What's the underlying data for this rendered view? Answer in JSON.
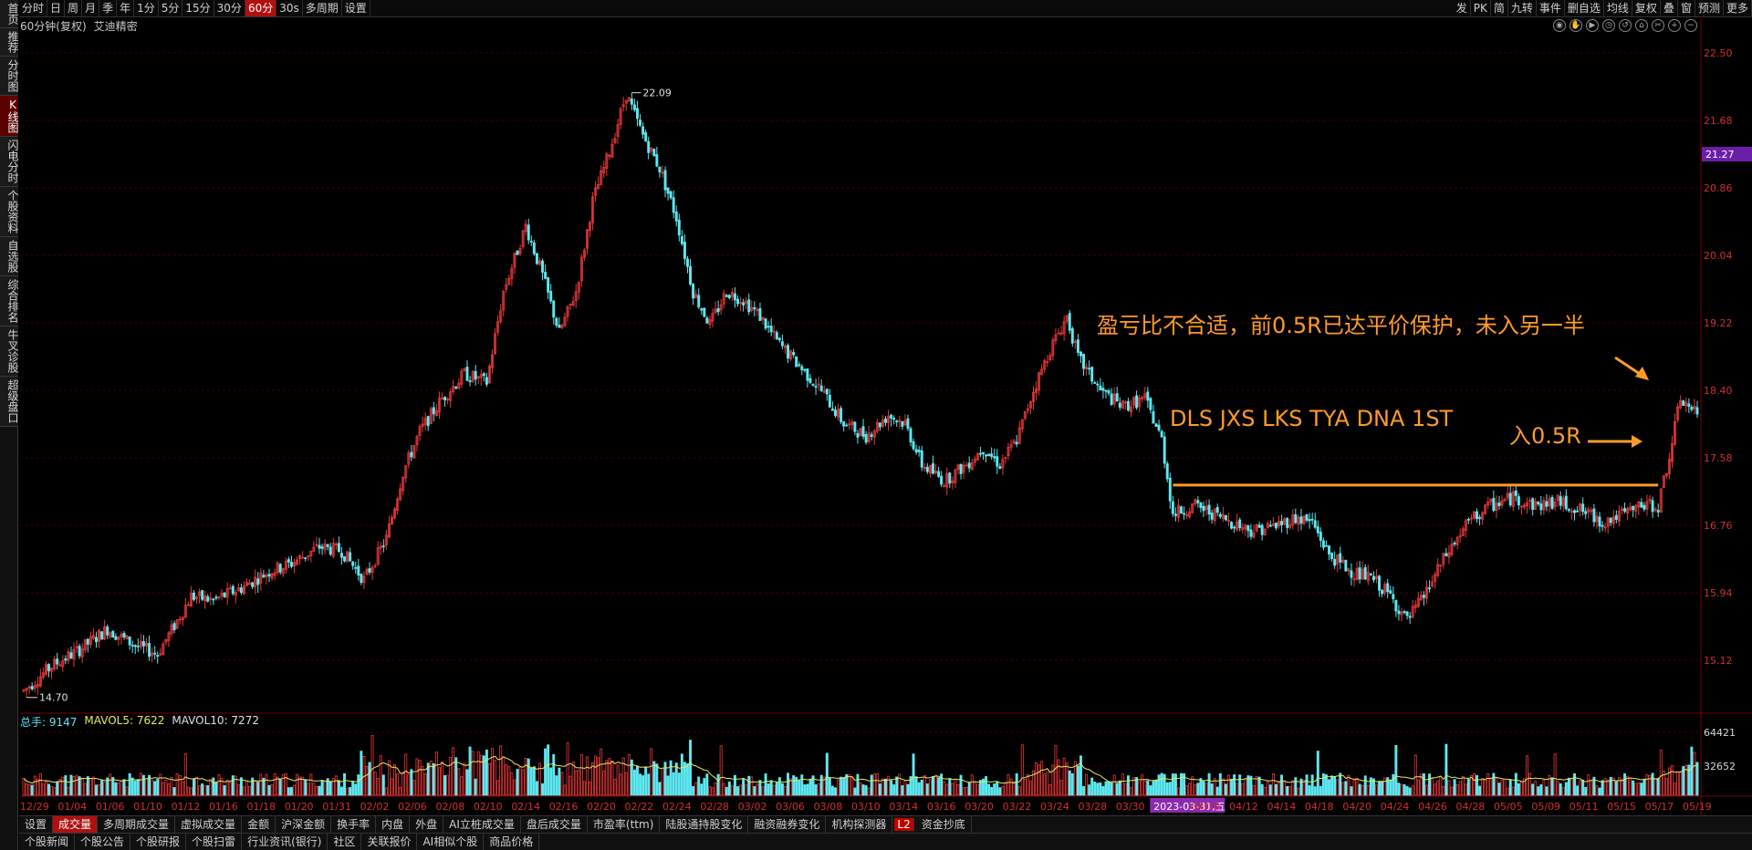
{
  "left_tabs": [
    "首页",
    "推荐",
    "分时图",
    "K线图",
    "闪电分时",
    "个股资料",
    "自选股",
    "综合排名",
    "牛叉诊股",
    "超级盘口"
  ],
  "left_active": 3,
  "toolbar": {
    "periods": [
      "分时",
      "日",
      "周",
      "月",
      "季",
      "年",
      "1分",
      "5分",
      "15分",
      "30分",
      "60分",
      "30s",
      "多周期",
      "设置"
    ],
    "active": 10,
    "right": [
      "发",
      "PK",
      "简",
      "九转",
      "事件",
      "删自选",
      "均线",
      "复权",
      "叠",
      "窗",
      "预测",
      "更多"
    ]
  },
  "header": {
    "period_label": "60分钟(复权)",
    "stock_name": "艾迪精密"
  },
  "price_axis": {
    "ticks": [
      "22.50",
      "21.68",
      "20.86",
      "20.04",
      "19.22",
      "18.40",
      "17.58",
      "16.76",
      "15.94",
      "15.12"
    ],
    "current": "21.27",
    "colors": {
      "current_bg": "#6b1fa8",
      "tick": "#d03030"
    }
  },
  "chart_data": {
    "type": "candlestick",
    "ylim": [
      14.5,
      22.7
    ],
    "max_label": "22.09",
    "min_label": "14.70",
    "date_labels": [
      "12/29",
      "01/04",
      "01/06",
      "01/10",
      "01/12",
      "01/16",
      "01/18",
      "01/20",
      "01/31",
      "02/02",
      "02/06",
      "02/08",
      "02/10",
      "02/14",
      "02/16",
      "02/20",
      "02/22",
      "02/24",
      "02/28",
      "03/02",
      "03/06",
      "03/08",
      "03/10",
      "03/14",
      "03/16",
      "03/20",
      "03/22",
      "03/24",
      "03/28",
      "03/30",
      "2023-03-31,五",
      "04/10",
      "04/12",
      "04/14",
      "04/18",
      "04/20",
      "04/24",
      "04/26",
      "04/28",
      "05/05",
      "05/09",
      "05/11",
      "05/15",
      "05/17",
      "05/19"
    ],
    "highlight_date": "2023-03-31,五",
    "trend_points": [
      [
        0,
        14.75
      ],
      [
        10,
        15.05
      ],
      [
        20,
        15.25
      ],
      [
        30,
        15.5
      ],
      [
        40,
        15.3
      ],
      [
        48,
        15.2
      ],
      [
        55,
        15.6
      ],
      [
        60,
        15.9
      ],
      [
        68,
        15.85
      ],
      [
        78,
        16.0
      ],
      [
        88,
        16.2
      ],
      [
        96,
        16.3
      ],
      [
        106,
        16.5
      ],
      [
        114,
        16.45
      ],
      [
        122,
        16.1
      ],
      [
        130,
        16.6
      ],
      [
        136,
        17.4
      ],
      [
        142,
        17.9
      ],
      [
        150,
        18.3
      ],
      [
        158,
        18.6
      ],
      [
        166,
        18.5
      ],
      [
        172,
        19.6
      ],
      [
        180,
        20.4
      ],
      [
        186,
        19.8
      ],
      [
        192,
        19.1
      ],
      [
        198,
        19.6
      ],
      [
        204,
        20.7
      ],
      [
        210,
        21.3
      ],
      [
        216,
        22.0
      ],
      [
        222,
        21.5
      ],
      [
        228,
        21.1
      ],
      [
        234,
        20.5
      ],
      [
        240,
        19.6
      ],
      [
        246,
        19.2
      ],
      [
        252,
        19.6
      ],
      [
        258,
        19.5
      ],
      [
        264,
        19.3
      ],
      [
        270,
        19.0
      ],
      [
        278,
        18.7
      ],
      [
        286,
        18.4
      ],
      [
        294,
        18.0
      ],
      [
        302,
        17.85
      ],
      [
        310,
        18.1
      ],
      [
        316,
        18.0
      ],
      [
        322,
        17.5
      ],
      [
        330,
        17.3
      ],
      [
        338,
        17.5
      ],
      [
        344,
        17.7
      ],
      [
        350,
        17.5
      ],
      [
        356,
        17.8
      ],
      [
        362,
        18.4
      ],
      [
        368,
        18.9
      ],
      [
        374,
        19.3
      ],
      [
        378,
        18.8
      ],
      [
        386,
        18.4
      ],
      [
        394,
        18.2
      ],
      [
        402,
        18.3
      ],
      [
        408,
        17.8
      ],
      [
        412,
        16.9
      ],
      [
        420,
        17.0
      ],
      [
        430,
        16.85
      ],
      [
        440,
        16.7
      ],
      [
        448,
        16.75
      ],
      [
        456,
        16.85
      ],
      [
        462,
        16.8
      ],
      [
        468,
        16.4
      ],
      [
        476,
        16.2
      ],
      [
        484,
        16.1
      ],
      [
        490,
        15.9
      ],
      [
        496,
        15.6
      ],
      [
        502,
        15.9
      ],
      [
        510,
        16.4
      ],
      [
        518,
        16.8
      ],
      [
        526,
        17.0
      ],
      [
        534,
        17.1
      ],
      [
        542,
        17.0
      ],
      [
        550,
        17.05
      ],
      [
        558,
        16.95
      ],
      [
        566,
        16.8
      ],
      [
        574,
        16.9
      ],
      [
        580,
        17.0
      ],
      [
        586,
        17.0
      ],
      [
        590,
        17.6
      ],
      [
        594,
        18.3
      ],
      [
        600,
        18.1
      ]
    ],
    "annotations": [
      "盈亏比不合适，前0.5R已达平价保护，未入另一半",
      "DLS JXS LKS TYA DNA 1ST",
      "入0.5R"
    ],
    "colors": {
      "up": "#e8383a",
      "down": "#5ee8f0",
      "annotation": "#ff9c2a",
      "grid": "#3a0000"
    }
  },
  "volume": {
    "label_total": "总手: 9147",
    "label_mavol5": "MAVOL5: 7622",
    "label_mavol10": "MAVOL10: 7272",
    "ticks": [
      "64421",
      "32652"
    ]
  },
  "bottom_tabs_1": [
    "设置",
    "成交量",
    "多周期成交量",
    "虚拟成交量",
    "金额",
    "沪深金额",
    "换手率",
    "内盘",
    "外盘",
    "AI立桩成交量",
    "盘后成交量",
    "市盈率(ttm)",
    "陆股通持股变化",
    "融资融券变化",
    "机构探测器",
    "L2",
    "资金抄底"
  ],
  "bottom_tabs_1_active": 1,
  "bottom_tabs_2": [
    "个股新闻",
    "个股公告",
    "个股研报",
    "个股扫雷",
    "行业资讯(银行)",
    "社区",
    "关联报价",
    "AI相似个股",
    "商品价格"
  ]
}
